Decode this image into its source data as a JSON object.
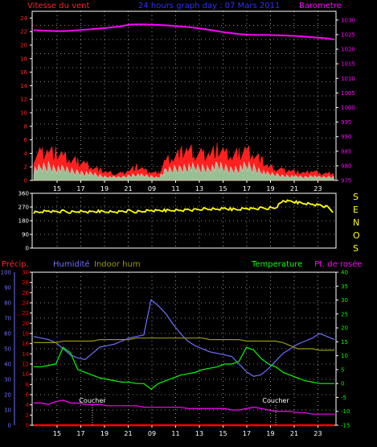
{
  "colors": {
    "wind": "#ff2020",
    "gust": "#ffffff",
    "gust_fill": "#88ddaa",
    "barometer": "#ff00ff",
    "direction": "#ffff00",
    "precip": "#ff0000",
    "humidity": "#7070ff",
    "indoor_hum": "#999900",
    "temperature": "#00ff00",
    "dewpoint": "#ff00ff",
    "grid": "#ffffff",
    "axis": "#ffffff"
  },
  "chart_data": [
    {
      "type": "area",
      "title": "24 hours graph day : 07 Mars 2011",
      "left_label": "Vitesse du vent",
      "right_label": "Barometre",
      "y_ticks_left": [
        "0",
        "2",
        "4",
        "6",
        "8",
        "10",
        "12",
        "14",
        "16",
        "18",
        "20",
        "22",
        "24"
      ],
      "y_ticks_right": [
        "975",
        "980",
        "985",
        "990",
        "995",
        "1000",
        "1005",
        "1010",
        "1015",
        "1020",
        "1025",
        "1030"
      ],
      "ylim_left": [
        0,
        25
      ],
      "ylim_right": [
        975,
        1033
      ],
      "x_ticks": [
        "15",
        "17",
        "19",
        "21",
        "09",
        "11",
        "13",
        "15",
        "17",
        "19",
        "21",
        "23"
      ],
      "series": [
        {
          "name": "Vitesse du vent",
          "axis": "left",
          "values": [
            3.5,
            4,
            4.5,
            4,
            3.5,
            3,
            2.8,
            2.5,
            2,
            1.5,
            1.2,
            1,
            1,
            1.5,
            2,
            1.5,
            1.2,
            1,
            3,
            3.5,
            4,
            4.5,
            4,
            3.8,
            4,
            4.5,
            4,
            3.5,
            4,
            4.5,
            4,
            3,
            2,
            1.8,
            1.5,
            1.5,
            1.2,
            1,
            1.5,
            1,
            1,
            1.2
          ]
        },
        {
          "name": "Barometre",
          "axis": "right",
          "values": [
            1026.5,
            1026.4,
            1026.3,
            1026.2,
            1026.2,
            1026.3,
            1026.5,
            1026.7,
            1026.9,
            1027.1,
            1027.3,
            1027.6,
            1027.9,
            1028.4,
            1028.5,
            1028.5,
            1028.4,
            1028.3,
            1028.2,
            1028.0,
            1027.8,
            1027.6,
            1027.3,
            1027.0,
            1026.6,
            1026.2,
            1025.8,
            1025.5,
            1025.2,
            1025.0,
            1024.9,
            1024.9,
            1024.9,
            1024.8,
            1024.7,
            1024.6,
            1024.5,
            1024.3,
            1024.1,
            1023.9,
            1023.7,
            1023.3
          ]
        }
      ]
    },
    {
      "type": "scatter",
      "right_label_letters": [
        "S",
        "E",
        "N",
        "O",
        "S"
      ],
      "y_ticks": [
        "0",
        "90",
        "180",
        "270",
        "360"
      ],
      "ylim": [
        0,
        360
      ],
      "x_ticks": [
        "15",
        "17",
        "19",
        "21",
        "09",
        "11",
        "13",
        "15",
        "17",
        "19",
        "21",
        "23"
      ],
      "series": [
        {
          "name": "Direction",
          "values": [
            235,
            240,
            245,
            238,
            242,
            236,
            240,
            238,
            236,
            242,
            240,
            238,
            240,
            244,
            238,
            242,
            246,
            244,
            248,
            250,
            248,
            252,
            250,
            258,
            256,
            254,
            258,
            255,
            256,
            262,
            258,
            262,
            262,
            265,
            310,
            305,
            300,
            295,
            288,
            282,
            270,
            235
          ]
        }
      ]
    },
    {
      "type": "line",
      "labels": {
        "precip": "Précip.",
        "humidity": "Humidité",
        "indoor_hum": "Indoor hum",
        "temperature": "Temperature",
        "dewpoint": "Pt. de rosée"
      },
      "y_ticks_humidity": [
        "0",
        "10",
        "20",
        "30",
        "40",
        "50",
        "60",
        "70",
        "80",
        "90",
        "100"
      ],
      "y_ticks_precip": [
        "0",
        "2",
        "4",
        "6",
        "8",
        "10",
        "12",
        "14",
        "16",
        "18",
        "20",
        "22",
        "24",
        "26",
        "28",
        "30"
      ],
      "y_ticks_temp": [
        "-15",
        "-10",
        "-5",
        "0",
        "5",
        "10",
        "15",
        "20",
        "25",
        "30",
        "35",
        "40"
      ],
      "ylim_humidity": [
        0,
        100
      ],
      "ylim_temp": [
        -15,
        40
      ],
      "x_ticks": [
        "15",
        "17",
        "19",
        "21",
        "09",
        "11",
        "13",
        "15",
        "17",
        "19",
        "21",
        "23"
      ],
      "annotations": [
        {
          "text": "Coucher",
          "x_index": 8
        },
        {
          "text": "Coucher",
          "x_index": 33
        }
      ],
      "series": [
        {
          "name": "Humidité",
          "axis": "humidity",
          "values": [
            58,
            57,
            56,
            54,
            50,
            46,
            44,
            43,
            47,
            51,
            52,
            53,
            55,
            57,
            58,
            59,
            82,
            78,
            73,
            66,
            60,
            55,
            52,
            50,
            48,
            47,
            46,
            45,
            40,
            35,
            32,
            33,
            37,
            42,
            47,
            50,
            53,
            55,
            57,
            60,
            58,
            56
          ]
        },
        {
          "name": "Indoor hum",
          "axis": "humidity",
          "values": [
            54,
            54,
            54,
            54,
            55,
            55,
            55,
            55,
            55,
            56,
            56,
            56,
            56,
            56,
            57,
            57,
            57,
            57,
            57,
            57,
            57,
            57,
            57,
            57,
            56,
            56,
            56,
            56,
            56,
            55,
            55,
            55,
            55,
            55,
            54,
            52,
            50,
            50,
            50,
            49,
            49,
            49
          ]
        },
        {
          "name": "Temperature",
          "axis": "temp",
          "values": [
            6,
            6,
            6.5,
            7,
            13,
            11,
            5,
            4,
            3,
            2,
            1.5,
            1,
            0.5,
            0.5,
            0,
            0,
            -2,
            0,
            1,
            2,
            3,
            3.5,
            4,
            5,
            5.5,
            6,
            7,
            7,
            8,
            13,
            12,
            9,
            7,
            6,
            4,
            3,
            2,
            1,
            0.5,
            0,
            0,
            0
          ]
        },
        {
          "name": "Pt. de rosée",
          "axis": "temp",
          "values": [
            -7,
            -7,
            -7.5,
            -6.5,
            -6,
            -7,
            -7,
            -7.5,
            -7.5,
            -7.5,
            -8,
            -8,
            -8,
            -8,
            -8,
            -8.5,
            -8.5,
            -8.5,
            -8.5,
            -8.5,
            -8.5,
            -9,
            -9,
            -9,
            -9,
            -9,
            -9,
            -9.5,
            -9.5,
            -9,
            -8.5,
            -9,
            -9.5,
            -10,
            -10,
            -10,
            -10.5,
            -10.5,
            -11,
            -11,
            -11,
            -11
          ]
        },
        {
          "name": "Précip.",
          "axis": "precip",
          "values": [
            0,
            0,
            0,
            0,
            0,
            0,
            0,
            0,
            0,
            0,
            0,
            0,
            0,
            0,
            0,
            0,
            0,
            0,
            0,
            0,
            0,
            0,
            0,
            0,
            0,
            0,
            0,
            0,
            0,
            0,
            0,
            0,
            0,
            0,
            0,
            0,
            0,
            0,
            0,
            0,
            0,
            0
          ]
        }
      ]
    }
  ]
}
